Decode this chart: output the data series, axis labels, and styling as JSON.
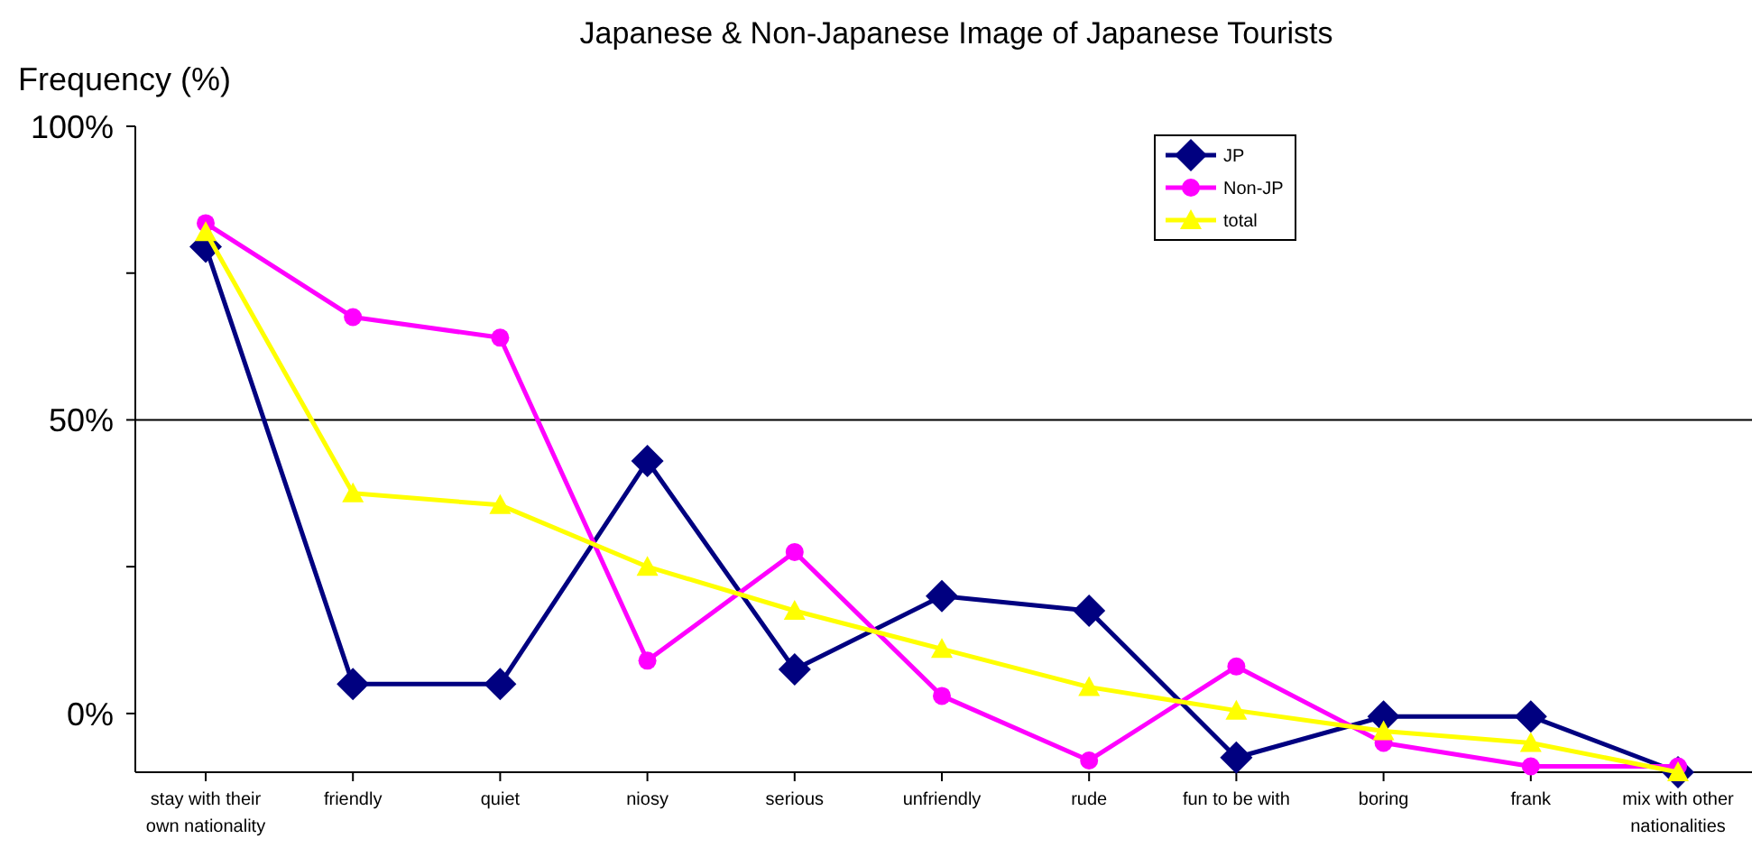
{
  "chart_data": {
    "type": "line",
    "title": "Japanese & Non-Japanese Image of Japanese Tourists",
    "ylabel": "Frequency (%)",
    "categories": [
      "stay with their own nationality",
      "friendly",
      "quiet",
      "niosy",
      "serious",
      "unfriendly",
      "rude",
      "fun to be with",
      "boring",
      "frank",
      "mix with other nationalities"
    ],
    "series": [
      {
        "name": "JP",
        "color": "#000080",
        "marker": "diamond",
        "values": [
          79.5,
          5,
          5,
          43,
          7.5,
          20,
          17.5,
          -7.5,
          -0.5,
          -0.5,
          -10
        ]
      },
      {
        "name": "Non-JP",
        "color": "#ff00ff",
        "marker": "circle",
        "values": [
          83.5,
          67.5,
          64,
          9,
          27.5,
          3,
          -8,
          8,
          -5,
          -9,
          -9
        ]
      },
      {
        "name": "total",
        "color": "#ffff00",
        "marker": "triangle",
        "values": [
          82,
          37.5,
          35.5,
          25,
          17.5,
          11,
          4.5,
          0.5,
          -3,
          -5,
          -10
        ]
      }
    ],
    "ylim": [
      -10,
      100
    ],
    "yticks": [
      {
        "value": 0,
        "label": "0%"
      },
      {
        "value": 25,
        "label": null
      },
      {
        "value": 50,
        "label": "50%"
      },
      {
        "value": 75,
        "label": null
      },
      {
        "value": 100,
        "label": "100%"
      }
    ],
    "ref_lines": [
      {
        "axis": "y",
        "value": 50,
        "color": "#000000"
      }
    ],
    "grid": false,
    "legend": "top right",
    "line_style": "solid"
  }
}
